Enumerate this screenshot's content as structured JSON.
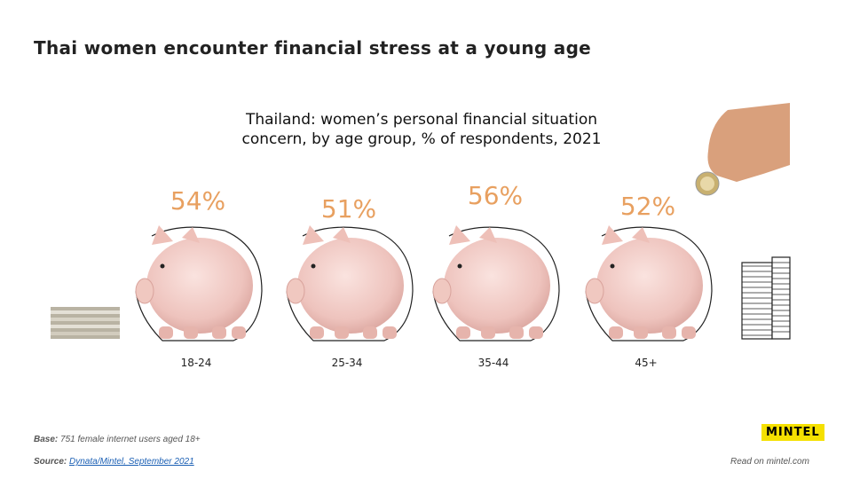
{
  "header": {
    "title": "Thai women encounter financial stress at a young age"
  },
  "chart_data": {
    "type": "pictograph",
    "title": "Thailand: women’s personal financial situation concern, by age group, % of respondents, 2021",
    "categories": [
      "18-24",
      "25-34",
      "35-44",
      "45+"
    ],
    "values": [
      54,
      51,
      56,
      52
    ],
    "value_labels": [
      "54%",
      "51%",
      "56%",
      "52%"
    ],
    "color": "#e8a060"
  },
  "footer": {
    "base_label": "Base:",
    "base_text": "751 female internet users aged 18+",
    "source_label": "Source:",
    "source_link": "Dynata/Mintel, September 2021",
    "logo": "MINTEL",
    "read_more": "Read on mintel.com"
  }
}
